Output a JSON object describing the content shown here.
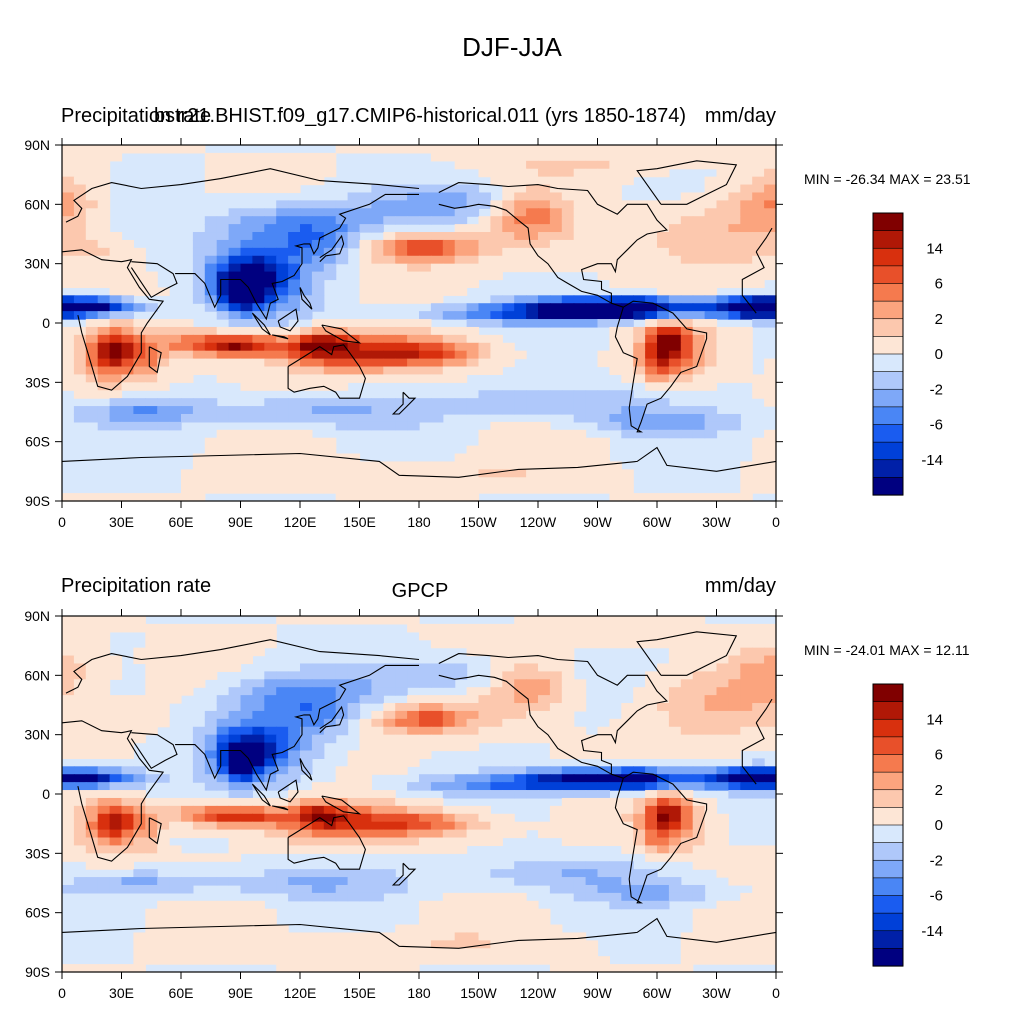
{
  "figure_title": "DJF-JJA",
  "palette": [
    "#000080",
    "#0020a8",
    "#0040d8",
    "#1a5cf0",
    "#4a86f5",
    "#7ea8f8",
    "#afc8fa",
    "#d8e8fc",
    "#fde6d6",
    "#fcc8ae",
    "#fba47e",
    "#f57a4e",
    "#e8502a",
    "#d8300e",
    "#b01806",
    "#800000"
  ],
  "colorbar_labels": [
    "14",
    "6",
    "2",
    "0",
    "-2",
    "-6",
    "-14"
  ],
  "lon_ticks": [
    "0",
    "30E",
    "60E",
    "90E",
    "120E",
    "150E",
    "180",
    "150W",
    "120W",
    "90W",
    "60W",
    "30W",
    "0"
  ],
  "lat_ticks": [
    "90N",
    "60N",
    "30N",
    "0",
    "30S",
    "60S",
    "90S"
  ],
  "panels": [
    {
      "left_title": "Precipitation rate",
      "center_title": "bstr21.BHIST.f09_g17.CMIP6-historical.011 (yrs 1850-1874)",
      "right_title": "mm/day",
      "stats": "MIN = -26.34 MAX =  23.51"
    },
    {
      "left_title": "Precipitation rate",
      "center_title": "GPCP",
      "right_title": "mm/day",
      "stats": "MIN = -24.01 MAX =  12.11"
    }
  ],
  "chart_data": [
    {
      "type": "heatmap",
      "title": "bstr21.BHIST.f09_g17.CMIP6-historical.011 (yrs 1850-1874)",
      "variable": "Precipitation rate",
      "units": "mm/day",
      "min": -26.34,
      "max": 23.51,
      "colorbar_levels": [
        -14,
        -6,
        -2,
        0,
        2,
        6,
        14
      ],
      "xlim": [
        0,
        360
      ],
      "ylim": [
        -90,
        90
      ]
    },
    {
      "type": "heatmap",
      "title": "GPCP",
      "variable": "Precipitation rate",
      "units": "mm/day",
      "min": -24.01,
      "max": 12.11,
      "colorbar_levels": [
        -14,
        -6,
        -2,
        0,
        2,
        6,
        14
      ],
      "xlim": [
        0,
        360
      ],
      "ylim": [
        -90,
        90
      ]
    }
  ]
}
